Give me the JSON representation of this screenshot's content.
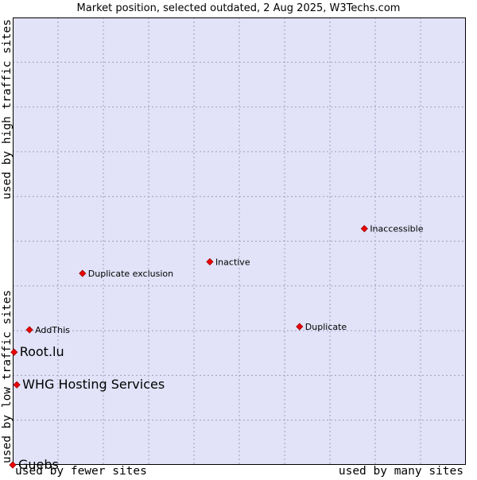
{
  "chart_data": {
    "type": "scatter",
    "title": "Market position, selected outdated, 2 Aug 2025, W3Techs.com",
    "x_label_left": "used by fewer sites",
    "x_label_right": "used by many sites",
    "y_label_bottom": "used by low traffic sites",
    "y_label_top": "used by high traffic sites",
    "xlim": [
      0,
      10
    ],
    "ylim": [
      0,
      10
    ],
    "grid": true,
    "legend": "none",
    "colors": {
      "plot_background": "#e2e2f8",
      "grid": "#9e9ec4",
      "marker": "#ee0000",
      "marker_edge": "#990000",
      "text": "#000000"
    },
    "points": [
      {
        "label": "Inaccessible",
        "x": 7.76,
        "y": 5.28,
        "emphasis": false
      },
      {
        "label": "Inactive",
        "x": 4.35,
        "y": 4.54,
        "emphasis": false
      },
      {
        "label": "Duplicate exclusion",
        "x": 1.54,
        "y": 4.28,
        "emphasis": false
      },
      {
        "label": "AddThis",
        "x": 0.37,
        "y": 3.02,
        "emphasis": false
      },
      {
        "label": "Duplicate",
        "x": 6.33,
        "y": 3.09,
        "emphasis": false
      },
      {
        "label": "Root.lu",
        "x": 0.03,
        "y": 2.52,
        "emphasis": true
      },
      {
        "label": "WHG Hosting Services",
        "x": 0.09,
        "y": 1.79,
        "emphasis": true
      },
      {
        "label": "Guebs",
        "x": 0.0,
        "y": 0.0,
        "emphasis": true
      }
    ]
  }
}
